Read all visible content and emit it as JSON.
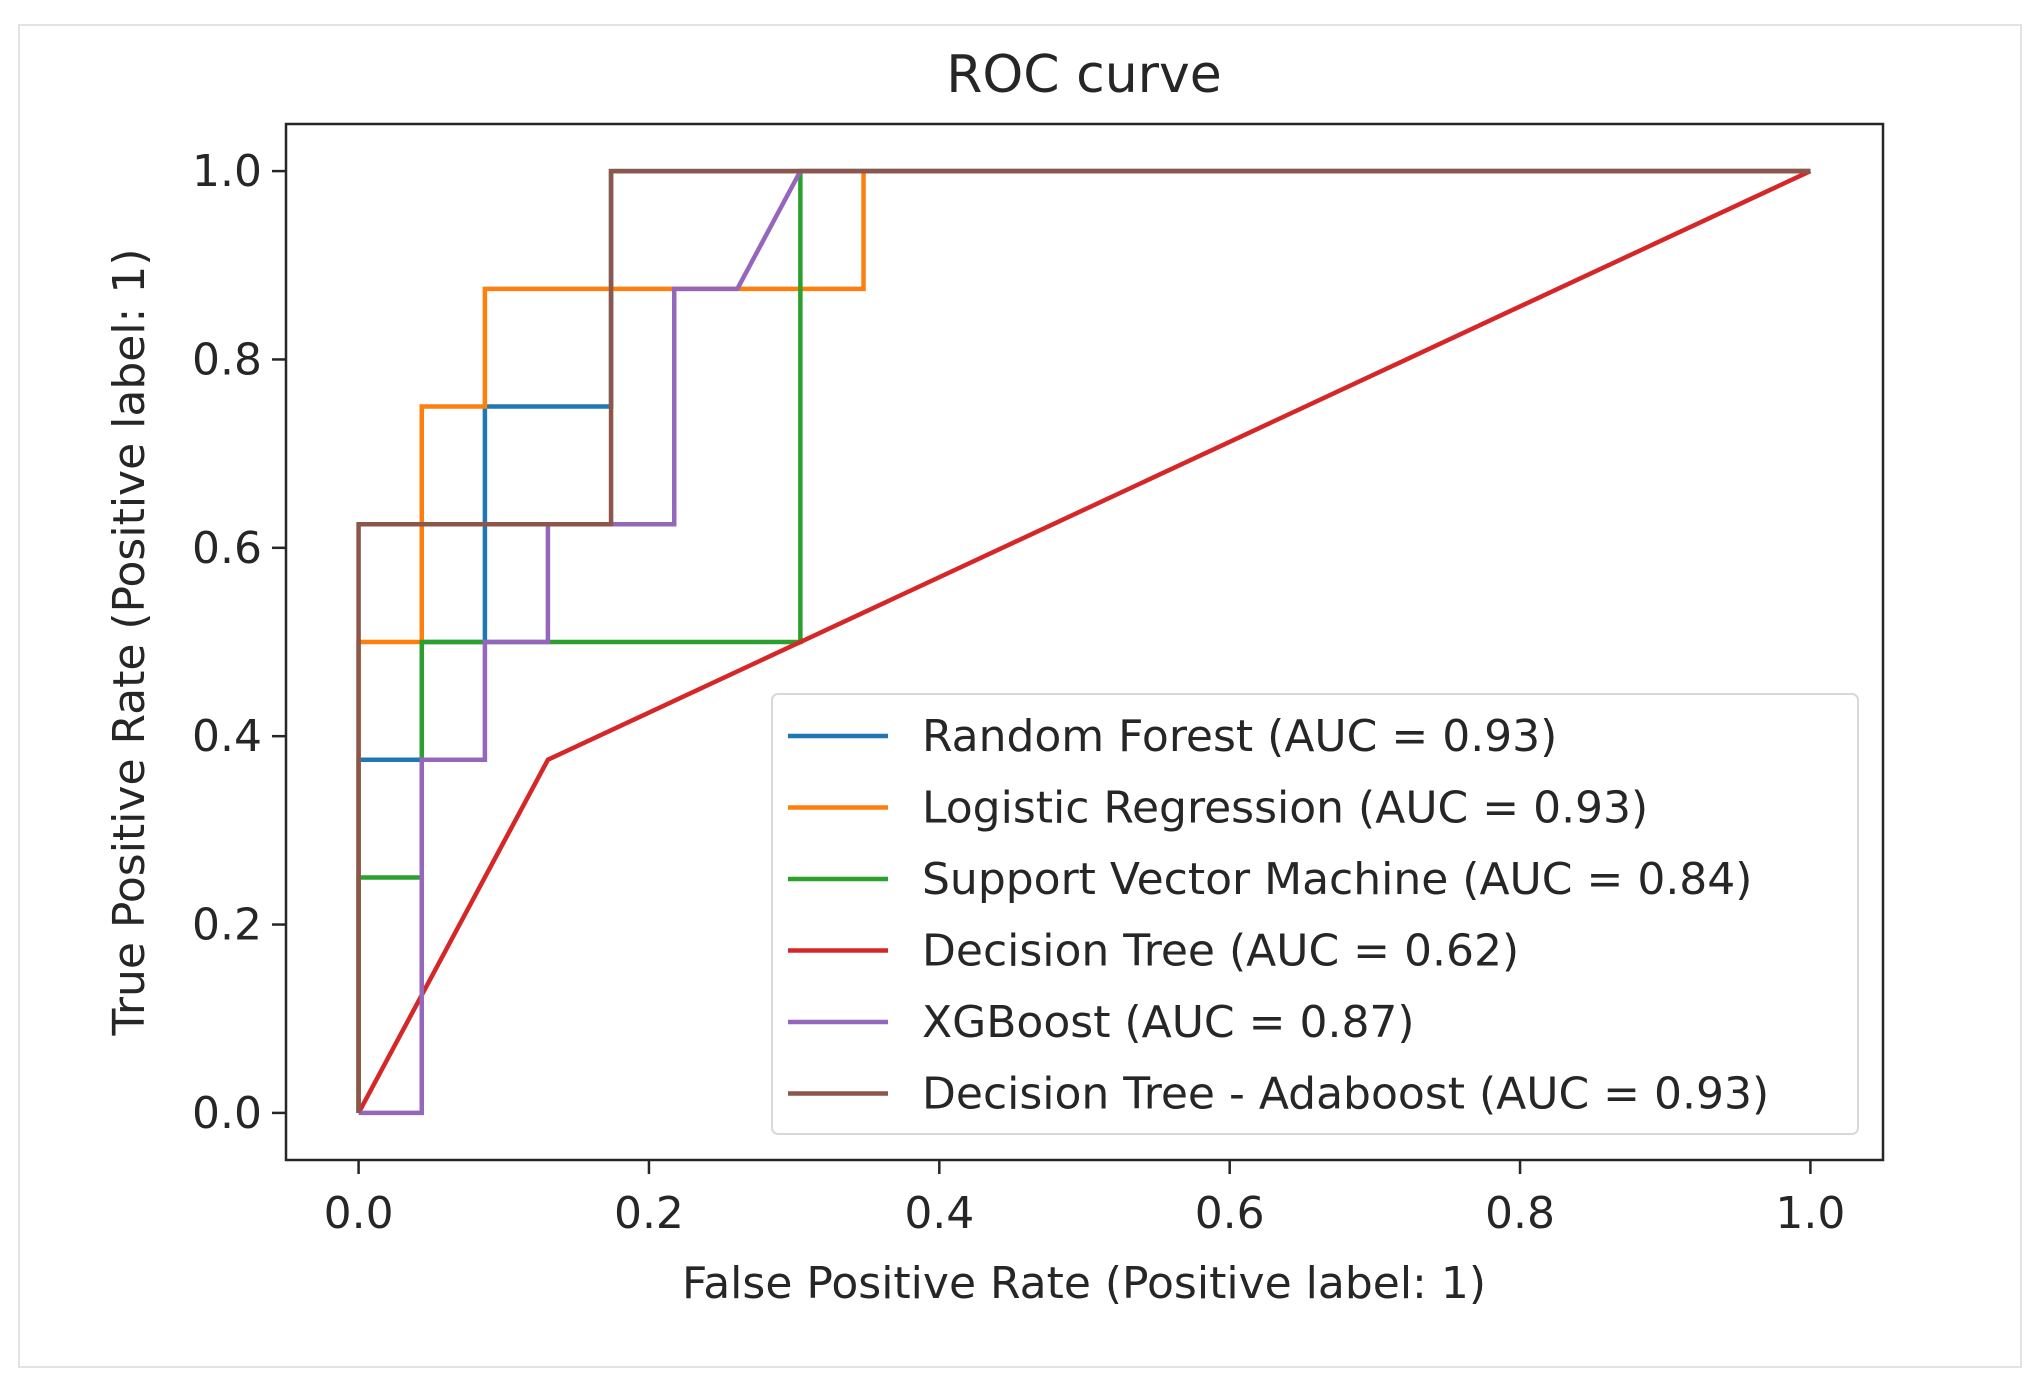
{
  "chart_data": {
    "type": "line",
    "title": "ROC curve",
    "xlabel": "False Positive Rate (Positive label: 1)",
    "ylabel": "True Positive Rate (Positive label: 1)",
    "xlim": [
      -0.05,
      1.05
    ],
    "ylim": [
      -0.05,
      1.05
    ],
    "xticks": [
      0.0,
      0.2,
      0.4,
      0.6,
      0.8,
      1.0
    ],
    "xtick_labels": [
      "0.0",
      "0.2",
      "0.4",
      "0.6",
      "0.8",
      "1.0"
    ],
    "yticks": [
      0.0,
      0.2,
      0.4,
      0.6,
      0.8,
      1.0
    ],
    "ytick_labels": [
      "0.0",
      "0.2",
      "0.4",
      "0.6",
      "0.8",
      "1.0"
    ],
    "grid": false,
    "legend_position": "lower-right",
    "series": [
      {
        "name": "Random Forest (AUC = 0.93)",
        "color": "#1f77b4",
        "x": [
          0,
          0,
          0.0435,
          0.0435,
          0.087,
          0.087,
          0.1739,
          0.1739,
          1.0
        ],
        "y": [
          0,
          0.375,
          0.375,
          0.5,
          0.5,
          0.75,
          0.75,
          1.0,
          1.0
        ]
      },
      {
        "name": "Logistic Regression (AUC = 0.93)",
        "color": "#ff7f0e",
        "x": [
          0,
          0,
          0.0435,
          0.0435,
          0.087,
          0.087,
          0.3478,
          0.3478,
          1.0
        ],
        "y": [
          0,
          0.5,
          0.5,
          0.75,
          0.75,
          0.875,
          0.875,
          1.0,
          1.0
        ]
      },
      {
        "name": "Support Vector Machine (AUC = 0.84)",
        "color": "#2ca02c",
        "x": [
          0,
          0,
          0.0435,
          0.0435,
          0.3043,
          0.3043,
          1.0
        ],
        "y": [
          0,
          0.25,
          0.25,
          0.5,
          0.5,
          1.0,
          1.0
        ]
      },
      {
        "name": "Decision Tree (AUC = 0.62)",
        "color": "#d62728",
        "x": [
          0,
          0.1304,
          1.0
        ],
        "y": [
          0,
          0.375,
          1.0
        ]
      },
      {
        "name": "XGBoost (AUC = 0.87)",
        "color": "#9467bd",
        "x": [
          0,
          0.0435,
          0.0435,
          0.087,
          0.087,
          0.1304,
          0.1304,
          0.2174,
          0.2174,
          0.2609,
          0.3043,
          1.0
        ],
        "y": [
          0,
          0,
          0.375,
          0.375,
          0.5,
          0.5,
          0.625,
          0.625,
          0.875,
          0.875,
          1.0,
          1.0
        ]
      },
      {
        "name": "Decision Tree - Adaboost (AUC = 0.93)",
        "color": "#8c564b",
        "x": [
          0,
          0,
          0.1739,
          0.1739,
          1.0
        ],
        "y": [
          0,
          0.625,
          0.625,
          1.0,
          1.0
        ]
      }
    ]
  }
}
